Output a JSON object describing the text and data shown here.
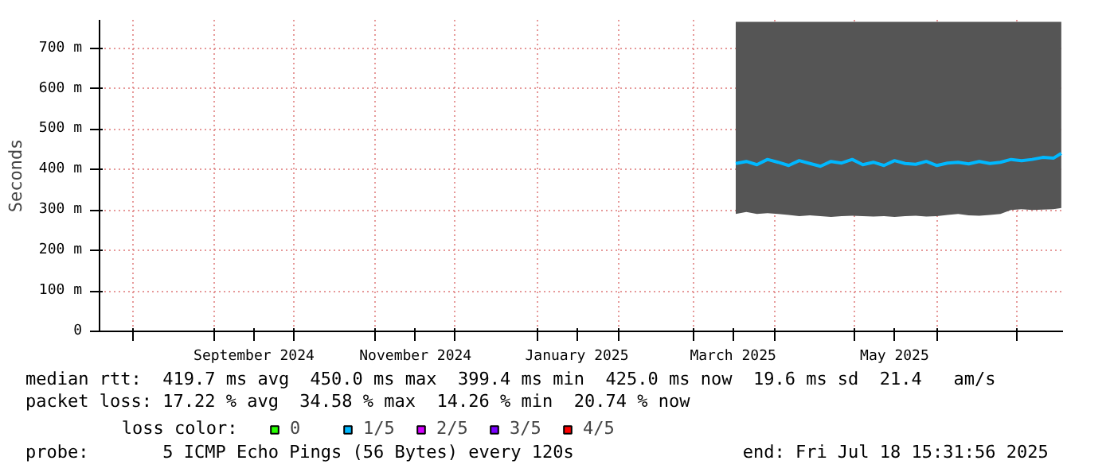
{
  "chart_data": {
    "type": "line",
    "ylabel": "Seconds",
    "legend_title": "loss color:",
    "legend": "bottom",
    "grid": true,
    "line_style": "solid",
    "xlim": [
      "2024-07-19T15:31",
      "2025-07-18T15:31"
    ],
    "xticks": [
      {
        "value": "2024-08-01",
        "label": null
      },
      {
        "value": "2024-09-01",
        "label": null
      },
      {
        "value": "2024-09-16",
        "label": "September 2024"
      },
      {
        "value": "2024-10-01",
        "label": null
      },
      {
        "value": "2024-11-01",
        "label": null
      },
      {
        "value": "2024-11-16",
        "label": "November 2024"
      },
      {
        "value": "2024-12-01",
        "label": null
      },
      {
        "value": "2025-01-01",
        "label": null
      },
      {
        "value": "2025-01-16",
        "label": "January 2025"
      },
      {
        "value": "2025-02-01",
        "label": null
      },
      {
        "value": "2025-03-01",
        "label": null
      },
      {
        "value": "2025-03-16",
        "label": "March 2025"
      },
      {
        "value": "2025-04-01",
        "label": null
      },
      {
        "value": "2025-05-01",
        "label": null
      },
      {
        "value": "2025-05-16",
        "label": "May 2025"
      },
      {
        "value": "2025-06-01",
        "label": null
      },
      {
        "value": "2025-07-01",
        "label": null
      }
    ],
    "ylim": [
      0,
      770
    ],
    "yticks": [
      0,
      {
        "value": 100,
        "label": "100 m"
      },
      {
        "value": 200,
        "label": "200 m"
      },
      {
        "value": 300,
        "label": "300 m"
      },
      {
        "value": 400,
        "label": "400 m"
      },
      {
        "value": 500,
        "label": "500 m"
      },
      {
        "value": 600,
        "label": "600 m"
      },
      {
        "value": 700,
        "label": "700 m"
      }
    ],
    "x": [
      "2025-03-17",
      "2025-03-21",
      "2025-03-25",
      "2025-03-29",
      "2025-04-02",
      "2025-04-06",
      "2025-04-10",
      "2025-04-14",
      "2025-04-18",
      "2025-04-22",
      "2025-04-26",
      "2025-04-30",
      "2025-05-04",
      "2025-05-08",
      "2025-05-12",
      "2025-05-16",
      "2025-05-20",
      "2025-05-24",
      "2025-05-28",
      "2025-06-01",
      "2025-06-05",
      "2025-06-09",
      "2025-06-13",
      "2025-06-17",
      "2025-06-21",
      "2025-06-25",
      "2025-06-29",
      "2025-07-03",
      "2025-07-07",
      "2025-07-11",
      "2025-07-15",
      "2025-07-18"
    ],
    "series": [
      {
        "name": "0",
        "color": "#26ff00",
        "values": [
          null,
          null,
          null,
          null,
          null,
          null,
          null,
          null,
          null,
          null,
          null,
          null,
          null,
          null,
          null,
          null,
          null,
          null,
          null,
          null,
          null,
          null,
          null,
          null,
          null,
          null,
          null,
          null,
          null,
          null,
          null,
          null
        ]
      },
      {
        "name": "1/5",
        "color": "#00b8ff",
        "values": [
          415,
          420,
          412,
          425,
          418,
          410,
          422,
          415,
          408,
          420,
          416,
          425,
          412,
          418,
          410,
          422,
          415,
          413,
          420,
          410,
          416,
          418,
          414,
          420,
          415,
          418,
          425,
          422,
          425,
          430,
          428,
          440
        ],
        "lower": [
          290,
          295,
          290,
          292,
          290,
          288,
          285,
          287,
          285,
          283,
          285,
          286,
          285,
          284,
          285,
          283,
          285,
          286,
          284,
          285,
          288,
          290,
          287,
          286,
          288,
          290,
          300,
          302,
          300,
          301,
          302,
          305
        ],
        "upper": [
          765,
          765,
          765,
          765,
          765,
          765,
          765,
          765,
          765,
          765,
          765,
          765,
          765,
          765,
          765,
          765,
          765,
          765,
          765,
          765,
          765,
          765,
          765,
          765,
          765,
          765,
          765,
          765,
          765,
          765,
          765,
          765
        ]
      },
      {
        "name": "2/5",
        "color": "#d500ff",
        "values": [
          null,
          null,
          null,
          null,
          null,
          null,
          null,
          null,
          null,
          null,
          null,
          null,
          null,
          null,
          null,
          null,
          null,
          null,
          null,
          null,
          null,
          null,
          null,
          null,
          null,
          null,
          null,
          null,
          null,
          null,
          null,
          null
        ]
      },
      {
        "name": "3/5",
        "color": "#7a00ff",
        "values": [
          null,
          null,
          null,
          null,
          null,
          null,
          null,
          null,
          null,
          null,
          null,
          null,
          null,
          null,
          null,
          null,
          null,
          null,
          null,
          null,
          null,
          null,
          null,
          null,
          null,
          null,
          null,
          null,
          null,
          null,
          null,
          null
        ]
      },
      {
        "name": "4/5",
        "color": "#ff0000",
        "values": [
          null,
          null,
          null,
          null,
          null,
          null,
          null,
          null,
          null,
          null,
          null,
          null,
          null,
          null,
          null,
          null,
          null,
          null,
          null,
          null,
          null,
          null,
          null,
          null,
          null,
          null,
          null,
          null,
          null,
          null,
          null,
          null
        ]
      }
    ],
    "annotations": [
      "median rtt:  419.7 ms avg  450.0 ms max  399.4 ms min  425.0 ms now  19.6 ms sd  21.4   am/s",
      "packet loss: 17.22 % avg  34.58 % max  14.26 % min  20.74 % now",
      "probe:       5 ICMP Echo Pings (56 Bytes) every 120s                end: Fri Jul 18 15:31:56 2025"
    ]
  }
}
